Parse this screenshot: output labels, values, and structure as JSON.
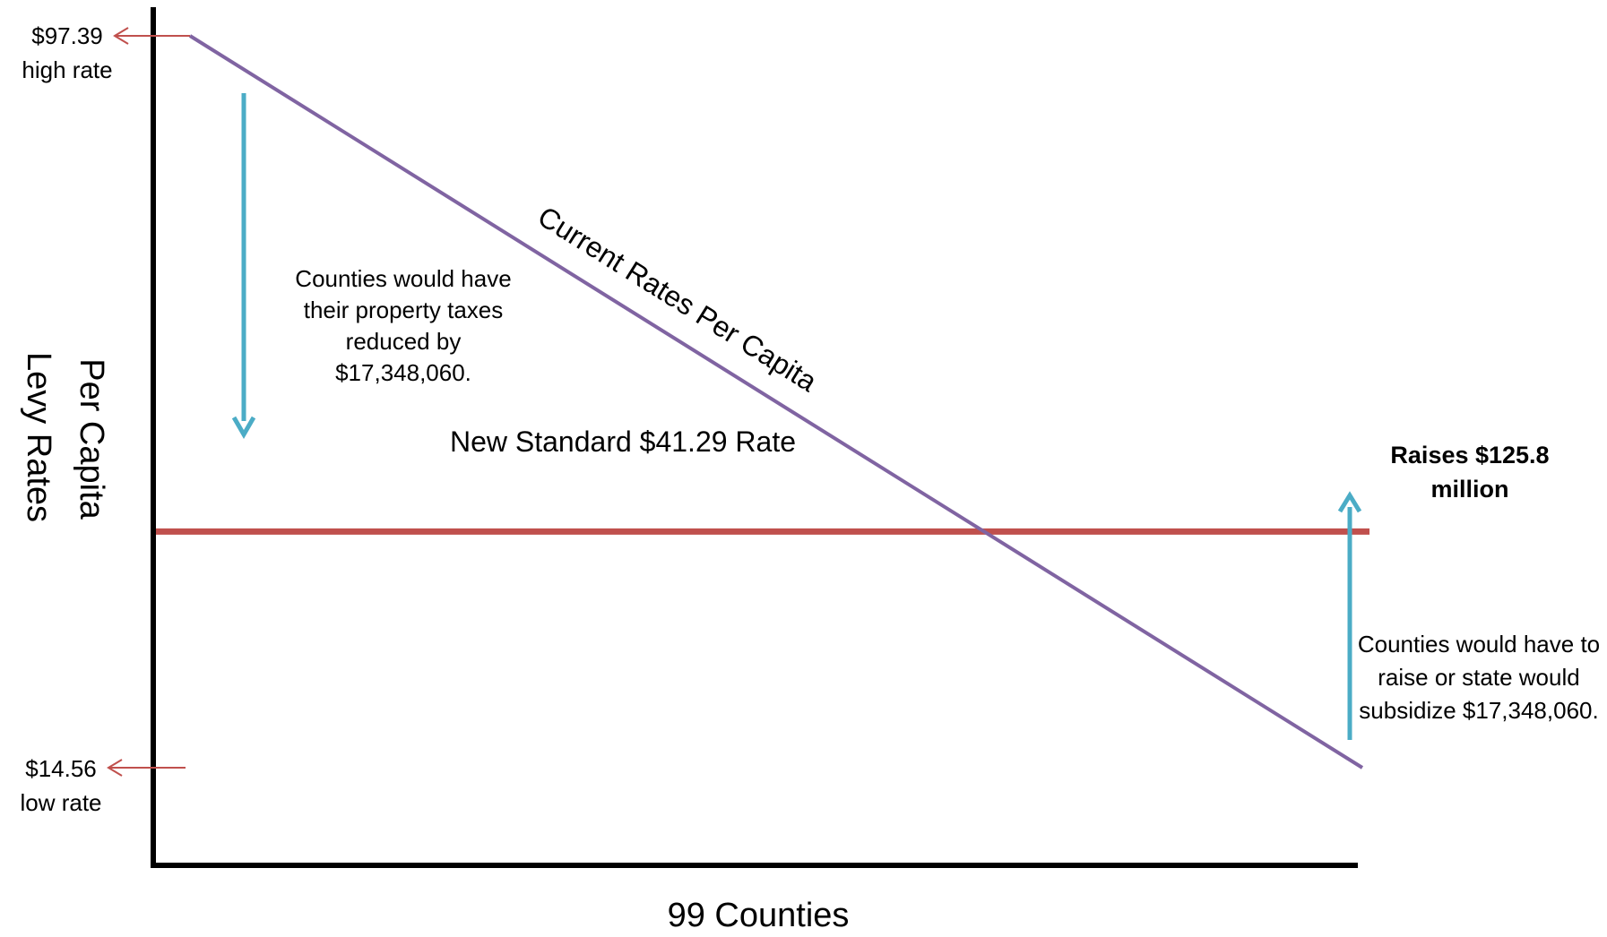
{
  "chart_data": {
    "type": "line",
    "x_label": "99 Counties",
    "y_label_lines": [
      "Per Capita",
      "Levy  Rates"
    ],
    "high_marker": {
      "value": 97.39,
      "value_label": "$97.39",
      "caption": "high rate"
    },
    "low_marker": {
      "value": 14.56,
      "value_label": "$14.56",
      "caption": "low rate"
    },
    "series": [
      {
        "name": "Current Rates Per Capita",
        "start": 97.39,
        "end": 14.56
      },
      {
        "name": "New Standard $41.29 Rate",
        "start": 41.29,
        "end": 41.29
      }
    ],
    "annotations": {
      "reduced_note": [
        "Counties would have",
        "their property taxes",
        "reduced by",
        "$17,348,060."
      ],
      "raise_note": [
        "Counties would have to",
        "raise or state would",
        "subsidize $17,348,060."
      ],
      "raises_total": [
        "Raises $125.8",
        "million"
      ]
    }
  },
  "colors": {
    "axis": "#000000",
    "current_line": "#8064a2",
    "standard_line": "#c0504d",
    "marker_arrow": "#c0504d",
    "note_arrow": "#4bacc6"
  }
}
